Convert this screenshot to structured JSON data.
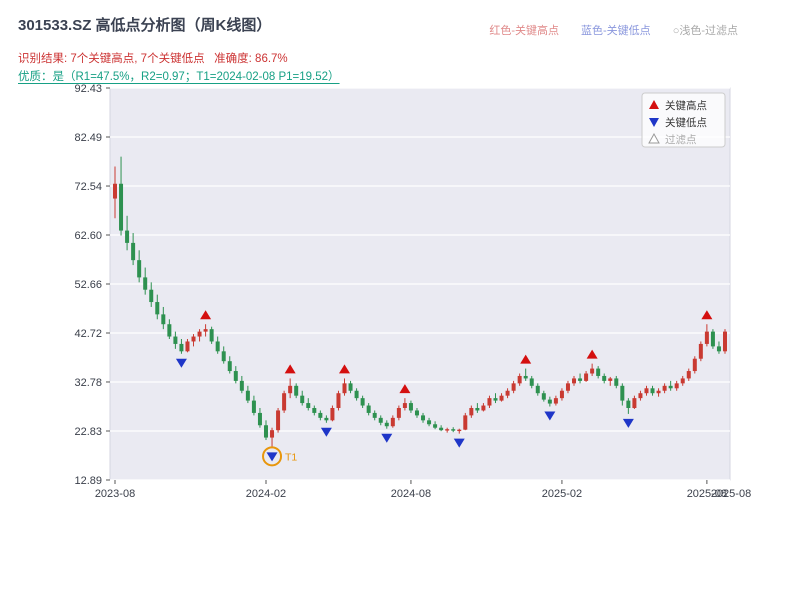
{
  "header": {
    "title": "301533.SZ 高低点分析图（周K线图）",
    "legend_high": {
      "label": "红色-关键高点",
      "color": "#e08a8a"
    },
    "legend_low": {
      "label": "蓝色-关键低点",
      "color": "#8a97dd"
    },
    "legend_filtered": {
      "label": "○浅色-过滤点",
      "color": "#a8a8a8"
    },
    "result_line": "识别结果: 7个关键高点, 7个关键低点   准确度: 86.7%",
    "quality_line": "优质：是（R1=47.5%，R2=0.97；T1=2024-02-08 P1=19.52）"
  },
  "chart_data": {
    "type": "candlestick",
    "title": "301533.SZ 高低点分析图（周K线图）",
    "ylim": [
      12.89,
      92.43
    ],
    "y_ticks": [
      "92.43",
      "82.49",
      "72.54",
      "62.60",
      "52.66",
      "42.72",
      "32.78",
      "22.83",
      "12.89"
    ],
    "x_ticks": [
      "2023-08",
      "2024-02",
      "2024-08",
      "2025-02",
      "2025-08"
    ],
    "x_end_label": "2025-08",
    "grid": true,
    "colors": {
      "up": "#c93a32",
      "down": "#2e9150",
      "key_high": "#d40f0f",
      "key_low": "#1f36c8",
      "filtered": "#999999",
      "t1": "#e8960c",
      "plot_bg": "#eaeaf2",
      "grid_line": "#ffffff",
      "axis_text": "#3a3f4a"
    },
    "plot_legend": [
      {
        "label": "关键高点",
        "marker": "triangle-up",
        "color": "#d40f0f"
      },
      {
        "label": "关键低点",
        "marker": "triangle-down",
        "color": "#1f36c8"
      },
      {
        "label": "过滤点",
        "marker": "triangle-hollow",
        "color": "#999999"
      }
    ],
    "annotation": {
      "label": "T1",
      "date": "2024-02-08",
      "price": 19.52
    },
    "key_highs": [
      {
        "date": "2023-11-24",
        "price": 44.5
      },
      {
        "date": "2024-03-08",
        "price": 33.5
      },
      {
        "date": "2024-05-17",
        "price": 33.5
      },
      {
        "date": "2024-07-26",
        "price": 29.5
      },
      {
        "date": "2024-12-20",
        "price": 35.5
      },
      {
        "date": "2025-03-14",
        "price": 36.5
      },
      {
        "date": "2025-08-01",
        "price": 44.5
      }
    ],
    "key_lows": [
      {
        "date": "2023-10-27",
        "price": 38.5
      },
      {
        "date": "2024-02-08",
        "price": 19.52
      },
      {
        "date": "2024-04-19",
        "price": 24.5
      },
      {
        "date": "2024-07-05",
        "price": 23.3
      },
      {
        "date": "2024-09-27",
        "price": 22.3
      },
      {
        "date": "2025-01-17",
        "price": 27.8
      },
      {
        "date": "2025-04-25",
        "price": 26.3
      }
    ],
    "candles": [
      [
        "2023-08-04",
        70,
        76.5,
        66,
        73
      ],
      [
        "2023-08-11",
        73,
        78.5,
        62.5,
        63.5
      ],
      [
        "2023-08-18",
        63.5,
        66.5,
        59.5,
        61
      ],
      [
        "2023-08-25",
        61,
        63,
        56.5,
        57.5
      ],
      [
        "2023-09-01",
        57.5,
        59.5,
        53,
        54
      ],
      [
        "2023-09-08",
        54,
        56,
        50.5,
        51.5
      ],
      [
        "2023-09-15",
        51.5,
        53,
        48,
        49
      ],
      [
        "2023-09-22",
        49,
        50.5,
        45.5,
        46.5
      ],
      [
        "2023-09-28",
        46.5,
        48,
        43.5,
        44.5
      ],
      [
        "2023-10-13",
        44.5,
        45.5,
        41.5,
        42
      ],
      [
        "2023-10-20",
        42,
        43,
        39.5,
        40.5
      ],
      [
        "2023-10-27",
        40.5,
        41.5,
        38.5,
        39
      ],
      [
        "2023-11-03",
        39,
        41.5,
        38.8,
        41
      ],
      [
        "2023-11-10",
        41,
        42.5,
        40,
        42
      ],
      [
        "2023-11-17",
        42,
        43.5,
        41,
        43
      ],
      [
        "2023-11-24",
        43,
        44.5,
        42,
        43.5
      ],
      [
        "2023-12-01",
        43.5,
        44,
        40.5,
        41
      ],
      [
        "2023-12-08",
        41,
        42,
        38.5,
        39
      ],
      [
        "2023-12-15",
        39,
        40,
        36.5,
        37
      ],
      [
        "2023-12-22",
        37,
        38,
        34.5,
        35
      ],
      [
        "2023-12-29",
        35,
        36,
        32.5,
        33
      ],
      [
        "2024-01-05",
        33,
        34,
        30.5,
        31
      ],
      [
        "2024-01-12",
        31,
        32,
        28.5,
        29
      ],
      [
        "2024-01-19",
        29,
        30,
        26,
        26.5
      ],
      [
        "2024-01-26",
        26.5,
        27.5,
        23.5,
        24
      ],
      [
        "2024-02-02",
        24,
        25,
        21,
        21.5
      ],
      [
        "2024-02-08",
        21.5,
        23.5,
        19.52,
        23
      ],
      [
        "2024-02-23",
        23,
        27.5,
        22.5,
        27
      ],
      [
        "2024-03-01",
        27,
        31,
        26.5,
        30.5
      ],
      [
        "2024-03-08",
        30.5,
        33.5,
        29.5,
        32
      ],
      [
        "2024-03-15",
        32,
        32.5,
        29.5,
        30
      ],
      [
        "2024-03-22",
        30,
        31,
        28,
        28.5
      ],
      [
        "2024-03-29",
        28.5,
        29.5,
        27,
        27.5
      ],
      [
        "2024-04-03",
        27.5,
        28,
        26,
        26.5
      ],
      [
        "2024-04-12",
        26.5,
        27,
        25,
        25.5
      ],
      [
        "2024-04-19",
        25.5,
        26,
        24.5,
        25
      ],
      [
        "2024-04-26",
        25,
        28,
        24.8,
        27.5
      ],
      [
        "2024-05-10",
        27.5,
        31,
        27,
        30.5
      ],
      [
        "2024-05-17",
        30.5,
        33.5,
        30,
        32.5
      ],
      [
        "2024-05-24",
        32.5,
        33,
        30.5,
        31
      ],
      [
        "2024-05-31",
        31,
        31.5,
        29,
        29.5
      ],
      [
        "2024-06-07",
        29.5,
        30,
        27.5,
        28
      ],
      [
        "2024-06-14",
        28,
        28.5,
        26,
        26.5
      ],
      [
        "2024-06-21",
        26.5,
        27,
        25,
        25.5
      ],
      [
        "2024-06-28",
        25.5,
        26,
        24,
        24.5
      ],
      [
        "2024-07-05",
        24.5,
        25,
        23.3,
        23.8
      ],
      [
        "2024-07-12",
        23.8,
        26,
        23.5,
        25.5
      ],
      [
        "2024-07-19",
        25.5,
        28,
        25,
        27.5
      ],
      [
        "2024-07-26",
        27.5,
        29.5,
        27,
        28.5
      ],
      [
        "2024-08-02",
        28.5,
        29,
        26.5,
        27
      ],
      [
        "2024-08-09",
        27,
        27.5,
        25.5,
        26
      ],
      [
        "2024-08-16",
        26,
        26.5,
        24.5,
        25
      ],
      [
        "2024-08-23",
        25,
        25.5,
        23.8,
        24.2
      ],
      [
        "2024-08-30",
        24.2,
        24.8,
        23.2,
        23.5
      ],
      [
        "2024-09-06",
        23.5,
        24,
        22.8,
        23
      ],
      [
        "2024-09-13",
        23,
        23.5,
        22.5,
        23.2
      ],
      [
        "2024-09-20",
        23.2,
        23.6,
        22.6,
        22.9
      ],
      [
        "2024-09-27",
        22.9,
        23.3,
        22.3,
        23.1
      ],
      [
        "2024-10-11",
        23.1,
        26.5,
        23,
        26
      ],
      [
        "2024-10-18",
        26,
        28,
        25.5,
        27.5
      ],
      [
        "2024-10-25",
        27.5,
        28.5,
        26.5,
        27
      ],
      [
        "2024-11-01",
        27,
        28.5,
        26.8,
        28
      ],
      [
        "2024-11-08",
        28,
        30,
        27.5,
        29.5
      ],
      [
        "2024-11-15",
        29.5,
        30.5,
        28.5,
        29
      ],
      [
        "2024-11-22",
        29,
        30.5,
        28.8,
        30
      ],
      [
        "2024-11-29",
        30,
        31.5,
        29.5,
        31
      ],
      [
        "2024-12-06",
        31,
        33,
        30.5,
        32.5
      ],
      [
        "2024-12-13",
        32.5,
        34.5,
        32,
        34
      ],
      [
        "2024-12-20",
        34,
        35.5,
        33,
        33.5
      ],
      [
        "2024-12-27",
        33.5,
        34,
        31.5,
        32
      ],
      [
        "2025-01-03",
        32,
        32.5,
        30,
        30.5
      ],
      [
        "2025-01-10",
        30.5,
        31,
        28.8,
        29.2
      ],
      [
        "2025-01-17",
        29.2,
        29.8,
        27.8,
        28.4
      ],
      [
        "2025-01-24",
        28.4,
        30,
        28,
        29.5
      ],
      [
        "2025-02-07",
        29.5,
        31.5,
        29,
        31
      ],
      [
        "2025-02-14",
        31,
        33,
        30.5,
        32.5
      ],
      [
        "2025-02-21",
        32.5,
        34,
        32,
        33.5
      ],
      [
        "2025-02-28",
        33.5,
        34.5,
        32.5,
        33
      ],
      [
        "2025-03-07",
        33,
        35,
        32.8,
        34.5
      ],
      [
        "2025-03-14",
        34.5,
        36.5,
        34,
        35.5
      ],
      [
        "2025-03-21",
        35.5,
        36,
        33.5,
        34
      ],
      [
        "2025-03-28",
        34,
        34.5,
        32.5,
        33
      ],
      [
        "2025-04-03",
        33,
        33.8,
        32,
        33.5
      ],
      [
        "2025-04-11",
        33.5,
        34,
        31.5,
        32
      ],
      [
        "2025-04-18",
        32,
        32.5,
        28,
        29
      ],
      [
        "2025-04-25",
        29,
        29.5,
        26.3,
        27.5
      ],
      [
        "2025-05-09",
        27.5,
        30,
        27.3,
        29.5
      ],
      [
        "2025-05-16",
        29.5,
        31,
        29,
        30.5
      ],
      [
        "2025-05-23",
        30.5,
        32,
        30,
        31.5
      ],
      [
        "2025-05-30",
        31.5,
        32,
        30,
        30.5
      ],
      [
        "2025-06-06",
        30.5,
        31.5,
        29.8,
        31
      ],
      [
        "2025-06-13",
        31,
        32.5,
        30.5,
        32
      ],
      [
        "2025-06-20",
        32,
        33,
        31,
        31.5
      ],
      [
        "2025-06-27",
        31.5,
        33,
        31,
        32.5
      ],
      [
        "2025-07-04",
        32.5,
        34,
        32,
        33.5
      ],
      [
        "2025-07-11",
        33.5,
        35.5,
        33,
        35
      ],
      [
        "2025-07-18",
        35,
        38,
        34.5,
        37.5
      ],
      [
        "2025-07-25",
        37.5,
        41,
        37,
        40.5
      ],
      [
        "2025-08-01",
        40.5,
        44.5,
        40,
        43
      ],
      [
        "2025-08-08",
        43,
        43.5,
        39.5,
        40
      ],
      [
        "2025-08-15",
        40,
        41,
        38.5,
        39
      ],
      [
        "2025-08-22",
        39,
        43.5,
        38.5,
        43
      ]
    ]
  }
}
